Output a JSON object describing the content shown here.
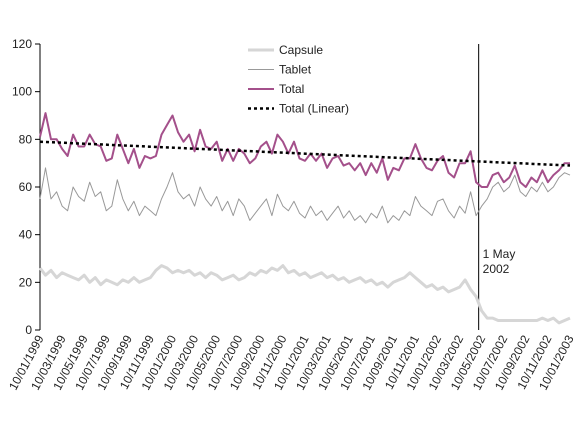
{
  "chart_data": {
    "type": "line",
    "categories": [
      "10/01/1999",
      null,
      null,
      null,
      "10/03/1999",
      null,
      null,
      null,
      "10/05/1999",
      null,
      null,
      null,
      "10/07/1999",
      null,
      null,
      null,
      "10/09/1999",
      null,
      null,
      null,
      "10/11/1999",
      null,
      null,
      null,
      "10/01/2000",
      null,
      null,
      null,
      "10/03/2000",
      null,
      null,
      null,
      "10/05/2000",
      null,
      null,
      null,
      "10/07/2000",
      null,
      null,
      null,
      "10/09/2000",
      null,
      null,
      null,
      "10/11/2000",
      null,
      null,
      null,
      "10/01/2001",
      null,
      null,
      null,
      "10/03/2001",
      null,
      null,
      null,
      "10/05/2001",
      null,
      null,
      null,
      "10/07/2001",
      null,
      null,
      null,
      "10/09/2001",
      null,
      null,
      null,
      "10/11/2001",
      null,
      null,
      null,
      "10/01/2002",
      null,
      null,
      null,
      "10/03/2002",
      null,
      null,
      null,
      "10/05/2002",
      null,
      null,
      null,
      "10/07/2002",
      null,
      null,
      null,
      "10/09/2002",
      null,
      null,
      null,
      "10/11/2002",
      null,
      null,
      null,
      "10/01/2003"
    ],
    "series": [
      {
        "name": "Capsule",
        "color": "#d6d6d6",
        "width": 3,
        "values": [
          26,
          23,
          25,
          22,
          24,
          23,
          22,
          21,
          23,
          20,
          22,
          19,
          21,
          20,
          19,
          21,
          20,
          22,
          20,
          21,
          22,
          25,
          27,
          26,
          24,
          25,
          24,
          25,
          23,
          24,
          22,
          24,
          23,
          21,
          22,
          23,
          21,
          22,
          24,
          23,
          25,
          24,
          26,
          25,
          27,
          24,
          25,
          23,
          24,
          22,
          23,
          24,
          22,
          23,
          21,
          22,
          20,
          21,
          22,
          20,
          21,
          19,
          20,
          18,
          20,
          21,
          22,
          24,
          22,
          20,
          18,
          19,
          17,
          18,
          16,
          17,
          18,
          21,
          17,
          14,
          8,
          5,
          5,
          4,
          4,
          4,
          4,
          4,
          4,
          4,
          4,
          5,
          4,
          5,
          3,
          4,
          5
        ]
      },
      {
        "name": "Tablet",
        "color": "#999999",
        "width": 1,
        "values": [
          55,
          68,
          55,
          58,
          52,
          50,
          60,
          56,
          54,
          62,
          56,
          58,
          50,
          52,
          63,
          55,
          50,
          54,
          48,
          52,
          50,
          48,
          55,
          60,
          66,
          58,
          55,
          57,
          52,
          60,
          55,
          52,
          56,
          50,
          54,
          48,
          55,
          52,
          46,
          49,
          52,
          55,
          48,
          57,
          52,
          50,
          54,
          49,
          47,
          52,
          48,
          50,
          46,
          49,
          52,
          47,
          50,
          46,
          48,
          45,
          49,
          47,
          52,
          45,
          48,
          46,
          50,
          48,
          56,
          52,
          50,
          48,
          54,
          55,
          50,
          47,
          52,
          49,
          58,
          48,
          52,
          55,
          60,
          62,
          58,
          60,
          65,
          58,
          56,
          60,
          58,
          62,
          58,
          60,
          64,
          66,
          65
        ]
      },
      {
        "name": "Total",
        "color": "#a4508b",
        "width": 2,
        "values": [
          81,
          91,
          80,
          80,
          76,
          73,
          82,
          77,
          77,
          82,
          78,
          77,
          71,
          72,
          82,
          76,
          70,
          76,
          68,
          73,
          72,
          73,
          82,
          86,
          90,
          83,
          79,
          82,
          75,
          84,
          77,
          76,
          79,
          71,
          76,
          71,
          76,
          74,
          70,
          72,
          77,
          79,
          74,
          82,
          79,
          74,
          79,
          72,
          71,
          74,
          71,
          74,
          68,
          72,
          73,
          69,
          70,
          67,
          70,
          65,
          70,
          66,
          72,
          63,
          68,
          67,
          72,
          72,
          78,
          72,
          68,
          67,
          71,
          73,
          66,
          64,
          70,
          70,
          75,
          62,
          60,
          60,
          65,
          66,
          62,
          64,
          69,
          62,
          60,
          64,
          62,
          67,
          62,
          65,
          67,
          70,
          70
        ]
      }
    ],
    "trendline": {
      "name": "Total (Linear)",
      "color": "#000000",
      "start": 79,
      "end": 69
    },
    "annotation": {
      "lines": [
        "1 May",
        "2002"
      ],
      "at": "10/05/2002"
    },
    "ylim": [
      0,
      120
    ],
    "yticks": [
      0,
      20,
      40,
      60,
      80,
      100,
      120
    ]
  }
}
